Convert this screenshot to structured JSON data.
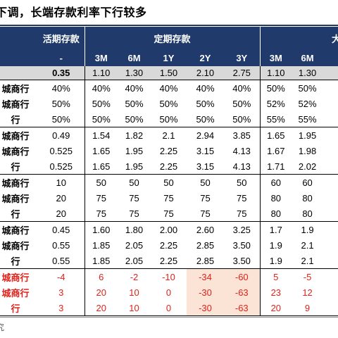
{
  "title": "下调，长端存款利率下行较多",
  "header": {
    "demand": "活期存款",
    "term": "定期存款",
    "right": "大",
    "terms_sub": [
      "-",
      "3M",
      "6M",
      "1Y",
      "2Y",
      "3Y",
      "3M",
      "6M"
    ]
  },
  "base_row": [
    "0.35",
    "1.10",
    "1.30",
    "1.50",
    "2.10",
    "2.75",
    "1.10",
    "1.30"
  ],
  "groups": [
    {
      "rows": [
        {
          "label": "城商行",
          "cells": [
            "40%",
            "40%",
            "40%",
            "40%",
            "40%",
            "40%",
            "50%",
            "50%"
          ]
        },
        {
          "label": "城商行",
          "cells": [
            "50%",
            "50%",
            "50%",
            "50%",
            "50%",
            "50%",
            "52%",
            "52%"
          ]
        },
        {
          "label": "行",
          "cells": [
            "50%",
            "50%",
            "50%",
            "50%",
            "50%",
            "50%",
            "55%",
            "55%"
          ]
        }
      ]
    },
    {
      "rows": [
        {
          "label": "城商行",
          "cells": [
            "0.49",
            "1.54",
            "1.82",
            "2.1",
            "2.94",
            "3.85",
            "1.65",
            "1.95"
          ]
        },
        {
          "label": "城商行",
          "cells": [
            "0.525",
            "1.65",
            "1.95",
            "2.25",
            "3.15",
            "4.13",
            "1.67",
            "1.98"
          ]
        },
        {
          "label": "行",
          "cells": [
            "0.525",
            "1.65",
            "1.95",
            "2.25",
            "3.15",
            "4.13",
            "1.71",
            "2.02"
          ]
        }
      ]
    },
    {
      "rows": [
        {
          "label": "城商行",
          "cells": [
            "10",
            "50",
            "50",
            "50",
            "50",
            "50",
            "60",
            "60"
          ]
        },
        {
          "label": "城商行",
          "cells": [
            "20",
            "75",
            "75",
            "75",
            "75",
            "75",
            "80",
            "80"
          ]
        },
        {
          "label": "行",
          "cells": [
            "20",
            "75",
            "75",
            "75",
            "75",
            "75",
            "80",
            "80"
          ]
        }
      ]
    },
    {
      "rows": [
        {
          "label": "城商行",
          "cells": [
            "0.45",
            "1.60",
            "1.80",
            "2.00",
            "2.60",
            "3.25",
            "1.7",
            "1.9"
          ]
        },
        {
          "label": "城商行",
          "cells": [
            "0.55",
            "1.85",
            "2.05",
            "2.25",
            "2.85",
            "3.50",
            "1.9",
            "2.1"
          ]
        },
        {
          "label": "行",
          "cells": [
            "0.55",
            "1.85",
            "2.05",
            "2.25",
            "2.85",
            "3.50",
            "1.9",
            "2.1"
          ]
        }
      ]
    },
    {
      "rows": [
        {
          "label": "城商行",
          "cells": [
            "-4",
            "6",
            "-2",
            "-10",
            "-34",
            "-60",
            "5",
            "-5"
          ]
        },
        {
          "label": "城商行",
          "cells": [
            "3",
            "20",
            "10",
            "0",
            "-30",
            "-63",
            "23",
            "12"
          ]
        },
        {
          "label": "行",
          "cells": [
            "3",
            "20",
            "10",
            "0",
            "-30",
            "-63",
            "20",
            "9"
          ]
        }
      ]
    }
  ],
  "highlight_color": "#fbe3d6",
  "red_color": "#e0221b",
  "header_color": "#1f3a6b",
  "source": "究"
}
